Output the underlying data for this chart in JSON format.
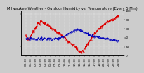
{
  "title": "Milwaukee Weather - Outdoor Humidity vs. Temperature (Every 5 Min)",
  "bg_color": "#cccccc",
  "plot_bg_color": "#cccccc",
  "grid_color": "#ffffff",
  "red_color": "#dd0000",
  "blue_color": "#0000bb",
  "ylim_temp": [
    -30,
    110
  ],
  "ylim_hum": [
    0,
    100
  ],
  "yticks_right": [
    0,
    20,
    40,
    60,
    80,
    100
  ],
  "title_fontsize": 3.8,
  "tick_fontsize": 3.0,
  "linewidth": 0.7,
  "temp_points_x": [
    0.0,
    0.03,
    0.06,
    0.1,
    0.13,
    0.18,
    0.22,
    0.26,
    0.3,
    0.34,
    0.38,
    0.42,
    0.46,
    0.5,
    0.54,
    0.57,
    0.6,
    0.63,
    0.66,
    0.7,
    0.73,
    0.76,
    0.8,
    0.83,
    0.87,
    0.9,
    0.93,
    0.97,
    1.0
  ],
  "temp_points_y": [
    30,
    20,
    35,
    55,
    70,
    75,
    68,
    60,
    50,
    42,
    35,
    25,
    15,
    5,
    -5,
    -15,
    -20,
    -10,
    5,
    20,
    35,
    45,
    55,
    65,
    72,
    78,
    82,
    88,
    92
  ],
  "hum_points_x": [
    0.0,
    0.05,
    0.1,
    0.15,
    0.2,
    0.25,
    0.3,
    0.35,
    0.4,
    0.45,
    0.5,
    0.55,
    0.6,
    0.65,
    0.7,
    0.75,
    0.8,
    0.85,
    0.9,
    0.95,
    1.0
  ],
  "hum_points_y": [
    38,
    38,
    37,
    37,
    38,
    38,
    37,
    38,
    42,
    48,
    54,
    58,
    55,
    50,
    45,
    42,
    40,
    38,
    36,
    34,
    32
  ],
  "num_xticks": 20
}
